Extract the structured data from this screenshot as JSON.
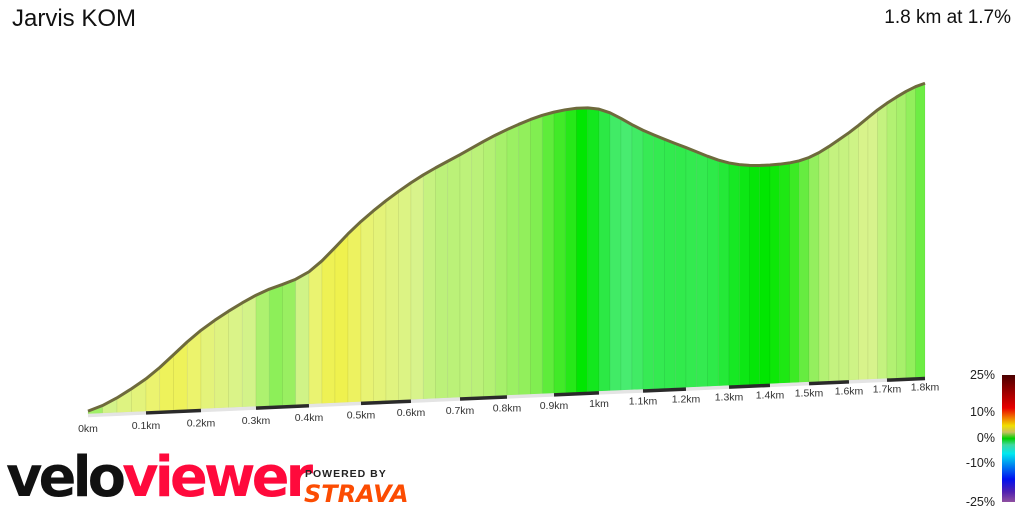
{
  "header": {
    "title": "Jarvis KOM",
    "summary": "1.8 km at 1.7%"
  },
  "chart_data": {
    "type": "area",
    "title": "Jarvis KOM",
    "x_unit": "km",
    "x_ticks": [
      "0km",
      "0.1km",
      "0.2km",
      "0.3km",
      "0.4km",
      "0.5km",
      "0.6km",
      "0.7km",
      "0.8km",
      "0.9km",
      "1km",
      "1.1km",
      "1.2km",
      "1.3km",
      "1.4km",
      "1.5km",
      "1.6km",
      "1.7km",
      "1.8km"
    ],
    "distance_km": [
      0,
      0.1,
      0.2,
      0.3,
      0.4,
      0.5,
      0.6,
      0.7,
      0.8,
      0.9,
      1.0,
      1.1,
      1.2,
      1.3,
      1.4,
      1.5,
      1.6,
      1.7,
      1.8
    ],
    "relative_elevation_m": [
      0.3,
      3.4,
      8.2,
      11.6,
      13.8,
      18.8,
      22.6,
      25.3,
      27.7,
      29.3,
      29.4,
      27.0,
      25.0,
      23.2,
      22.8,
      23.4,
      25.8,
      28.7,
      30.6
    ],
    "xlim": [
      0,
      1.8
    ],
    "fill_encoding": "gradient %",
    "grid": false,
    "legend": {
      "position": "bottom-right",
      "type": "color scale",
      "labels": [
        "25%",
        "10%",
        "0%",
        "-10%",
        "-25%"
      ],
      "colors": {
        "0": "#00e600",
        "-5": "#80f0c8",
        "-10": "#00e5ee",
        "2": "#90ee60",
        "4": "#e6f590",
        "6": "#f0f040",
        "10": "#f0c000",
        "25": "#4a0000"
      }
    }
  },
  "branding": {
    "logo_velo": "velo",
    "logo_viewer": "viewer",
    "powered_by": "POWERED BY",
    "strava": "STRAVA"
  }
}
